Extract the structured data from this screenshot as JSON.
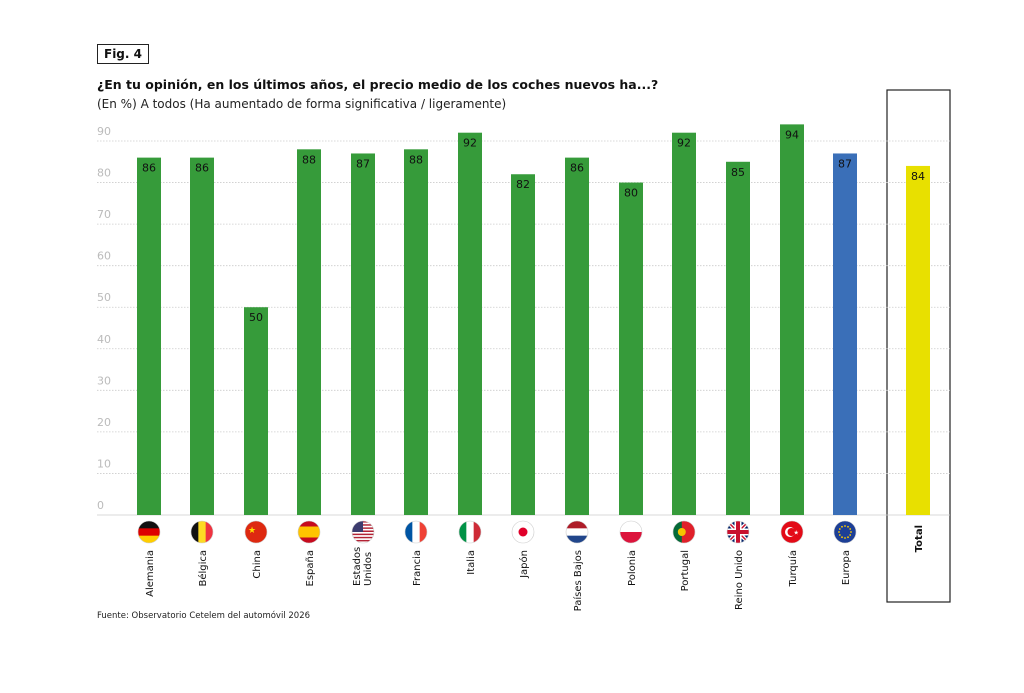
{
  "figure_label": "Fig. 4",
  "source": "Fuente: Observatorio Cetelem del automóvil 2026",
  "colors": {
    "country": "#369b3a",
    "europe": "#3a6fb8",
    "total": "#e8e000",
    "grid": "#cccccc",
    "tick": "#bbbbbb"
  },
  "chart_data": {
    "type": "bar",
    "title": "¿En tu opinión, en los últimos años, el precio medio de los coches nuevos ha...?",
    "subtitle": "(En %) A todos (Ha aumentado de forma significativa / ligeramente)",
    "xlabel": "",
    "ylabel": "",
    "ylim": [
      0,
      90
    ],
    "yticks": [
      "0",
      "10",
      "20",
      "30",
      "40",
      "50",
      "60",
      "70",
      "80",
      "90"
    ],
    "grid": true,
    "categories": [
      {
        "label": "Alemania",
        "flag": "de"
      },
      {
        "label": "Bélgica",
        "flag": "be"
      },
      {
        "label": "China",
        "flag": "cn"
      },
      {
        "label": "España",
        "flag": "es"
      },
      {
        "label": "Estados Unidos",
        "flag": "us"
      },
      {
        "label": "Francia",
        "flag": "fr"
      },
      {
        "label": "Italia",
        "flag": "it"
      },
      {
        "label": "Japón",
        "flag": "jp"
      },
      {
        "label": "Países Bajos",
        "flag": "nl"
      },
      {
        "label": "Polonia",
        "flag": "pl"
      },
      {
        "label": "Portugal",
        "flag": "pt"
      },
      {
        "label": "Reino Unido",
        "flag": "gb"
      },
      {
        "label": "Turquía",
        "flag": "tr"
      },
      {
        "label": "Europa",
        "flag": "eu"
      },
      {
        "label": "Total",
        "flag": ""
      }
    ],
    "values": [
      86,
      86,
      50,
      88,
      87,
      88,
      92,
      82,
      86,
      80,
      92,
      85,
      94,
      87,
      84
    ],
    "kinds": [
      "country",
      "country",
      "country",
      "country",
      "country",
      "country",
      "country",
      "country",
      "country",
      "country",
      "country",
      "country",
      "country",
      "europe",
      "total"
    ]
  }
}
